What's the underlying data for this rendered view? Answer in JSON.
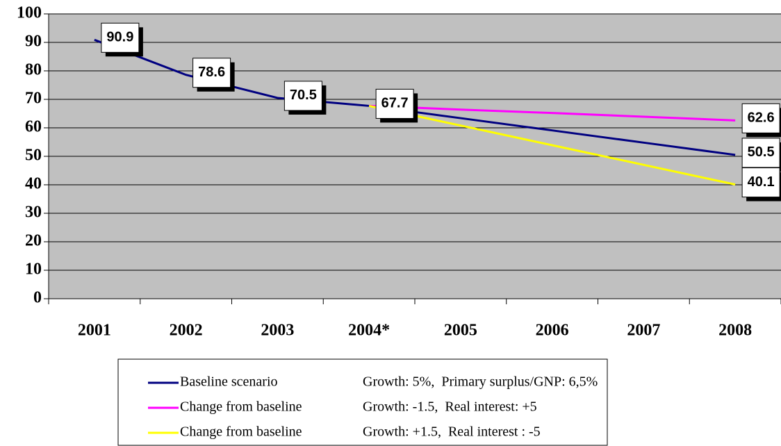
{
  "chart_data": {
    "type": "line",
    "categories": [
      "2001",
      "2002",
      "2003",
      "2004*",
      "2005",
      "2006",
      "2007",
      "2008"
    ],
    "series": [
      {
        "name": "Baseline scenario",
        "description": "Growth: 5%,  Primary surplus/GNP: 6,5%",
        "color": "#000080",
        "values": [
          90.9,
          78.6,
          70.5,
          67.7,
          63.4,
          59.1,
          54.8,
          50.5
        ],
        "value_labels": [
          "90.9",
          "78.6",
          "70.5",
          "67.7",
          null,
          null,
          null,
          "50.5"
        ]
      },
      {
        "name": "Change from baseline",
        "description": "Growth: -1.5,  Real interest: +5",
        "color": "#ff00ff",
        "values": [
          null,
          null,
          null,
          67.7,
          66.4,
          65.2,
          63.9,
          62.6
        ],
        "value_labels": [
          null,
          null,
          null,
          null,
          null,
          null,
          null,
          "62.6"
        ]
      },
      {
        "name": "Change from baseline",
        "description": "Growth: +1.5,  Real interest : -5",
        "color": "#ffff00",
        "values": [
          null,
          null,
          null,
          67.7,
          60.8,
          53.9,
          47.0,
          40.1
        ],
        "value_labels": [
          null,
          null,
          null,
          null,
          null,
          null,
          null,
          "40.1"
        ]
      }
    ],
    "ylim": [
      0,
      100
    ],
    "yticks": [
      0,
      10,
      20,
      30,
      40,
      50,
      60,
      70,
      80,
      90,
      100
    ],
    "grid": true,
    "plot_background": "#c0c0c0",
    "legend": "bottom"
  }
}
